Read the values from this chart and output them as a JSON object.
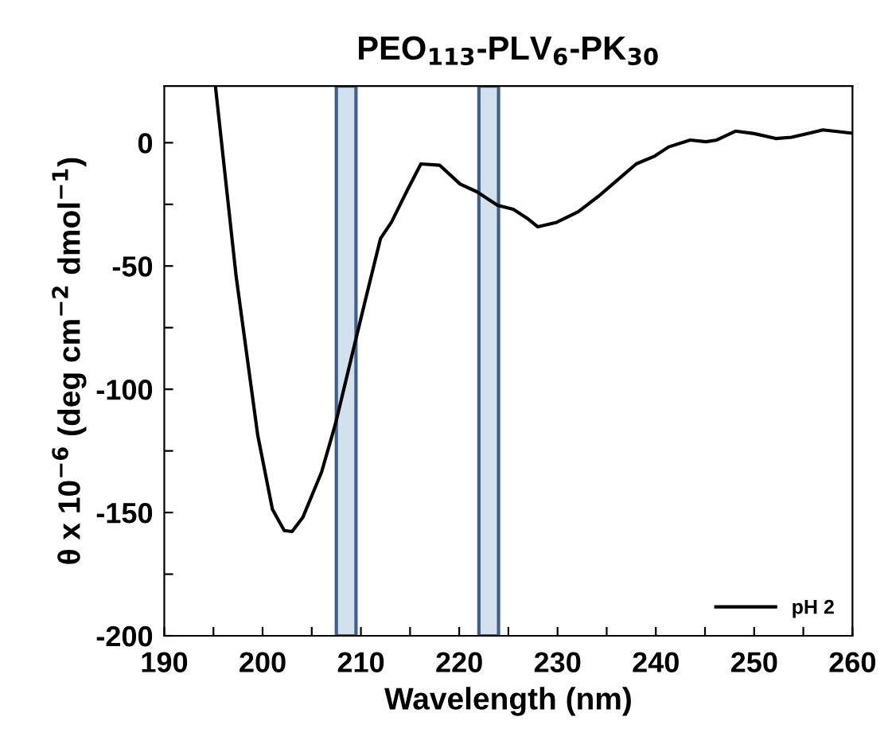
{
  "chart_data": {
    "type": "line",
    "title": "PEO$_{113}$-PLV$_{6}$-PK$_{30}$",
    "xlabel": "Wavelength (nm)",
    "ylabel": "θ x 10$^{−6}$ (deg cm$^{−2}$ dmol$^{−1}$)",
    "xlim": [
      190,
      260
    ],
    "ylim": [
      -200,
      23
    ],
    "xticks": [
      190,
      {
        "value": 195,
        "label": null
      },
      200,
      {
        "value": 205,
        "label": null
      },
      210,
      {
        "value": 215,
        "label": null
      },
      220,
      {
        "value": 225,
        "label": null
      },
      230,
      {
        "value": 235,
        "label": null
      },
      240,
      {
        "value": 245,
        "label": null
      },
      250,
      {
        "value": 255,
        "label": null
      },
      260
    ],
    "yticks": [
      -200,
      {
        "value": -175,
        "label": null
      },
      -150,
      {
        "value": -125,
        "label": null
      },
      -100,
      {
        "value": -75,
        "label": null
      },
      -50,
      {
        "value": -25,
        "label": null
      },
      0
    ],
    "grid": false,
    "legend": "bottom right",
    "series": [
      {
        "name": "pH 2",
        "color": "#000000",
        "x": [
          195.2,
          197.3,
          199.5,
          201.0,
          202.2,
          203.0,
          204.1,
          206.0,
          207.4,
          208.7,
          210.4,
          212.0,
          213.1,
          214.7,
          216.1,
          218.0,
          220.1,
          221.8,
          223.9,
          225.5,
          226.9,
          228.0,
          229.9,
          232.1,
          234.2,
          236.1,
          238.0,
          239.9,
          241.3,
          243.5,
          245.1,
          246.2,
          248.1,
          250.0,
          252.2,
          253.8,
          257.0,
          259.9
        ],
        "values": [
          23,
          -53.9,
          -118.5,
          -148.7,
          -157.3,
          -157.7,
          -151.9,
          -133.6,
          -114.2,
          -92.7,
          -64.7,
          -38.8,
          -32.3,
          -19.4,
          -8.6,
          -9.1,
          -16.8,
          -19.9,
          -25.4,
          -27.0,
          -30.6,
          -34.1,
          -32.3,
          -28.0,
          -21.6,
          -15.1,
          -8.6,
          -5.4,
          -1.7,
          1.1,
          0.4,
          1.1,
          4.7,
          3.7,
          1.7,
          2.2,
          5.2,
          3.9
        ]
      }
    ],
    "bands": [
      {
        "axis": "x",
        "from": 207.5,
        "to": 209.5,
        "label": null,
        "color": "#d3e0ee"
      },
      {
        "axis": "x",
        "from": 222,
        "to": 224,
        "label": null,
        "color": "#d3e0ee"
      }
    ]
  }
}
